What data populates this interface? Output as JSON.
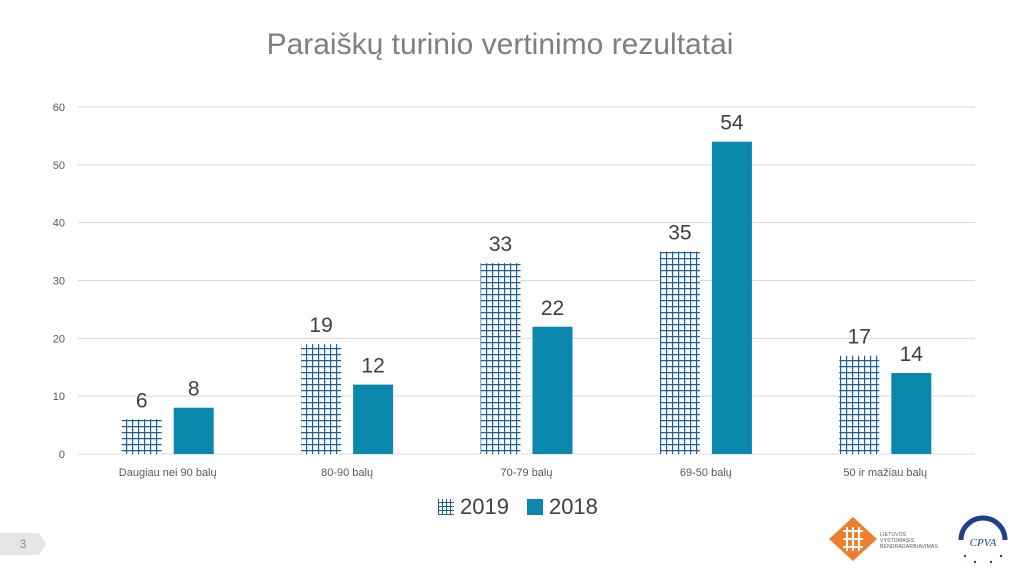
{
  "title": "Paraiškų turinio vertinimo rezultatai",
  "page_number": "3",
  "colors": {
    "series_2019": "#1f5f99",
    "series_2018": "#0a87ad",
    "gridline": "#d9d9d9",
    "title": "#7f7f7f"
  },
  "logos": {
    "logo1_text": [
      "LIETUVOS",
      "VYSTOMASIS",
      "BENDRADARBIAVIMAS"
    ],
    "logo2_text": "CPVA"
  },
  "chart_data": {
    "type": "bar",
    "title": "Paraiškų turinio vertinimo rezultatai",
    "categories": [
      "Daugiau nei 90  balų",
      "80-90 balų",
      "70-79 balų",
      "69-50 balų",
      "50 ir mažiau balų"
    ],
    "series": [
      {
        "name": "2019",
        "values": [
          6,
          19,
          33,
          35,
          17
        ],
        "pattern": "grid-hatch"
      },
      {
        "name": "2018",
        "values": [
          8,
          12,
          22,
          54,
          14
        ],
        "pattern": "solid"
      }
    ],
    "ylim": [
      0,
      60
    ],
    "yticks": [
      "0",
      "10",
      "20",
      "30",
      "40",
      "50",
      "60"
    ],
    "grid": true,
    "legend_position": "bottom",
    "data_labels": true
  }
}
